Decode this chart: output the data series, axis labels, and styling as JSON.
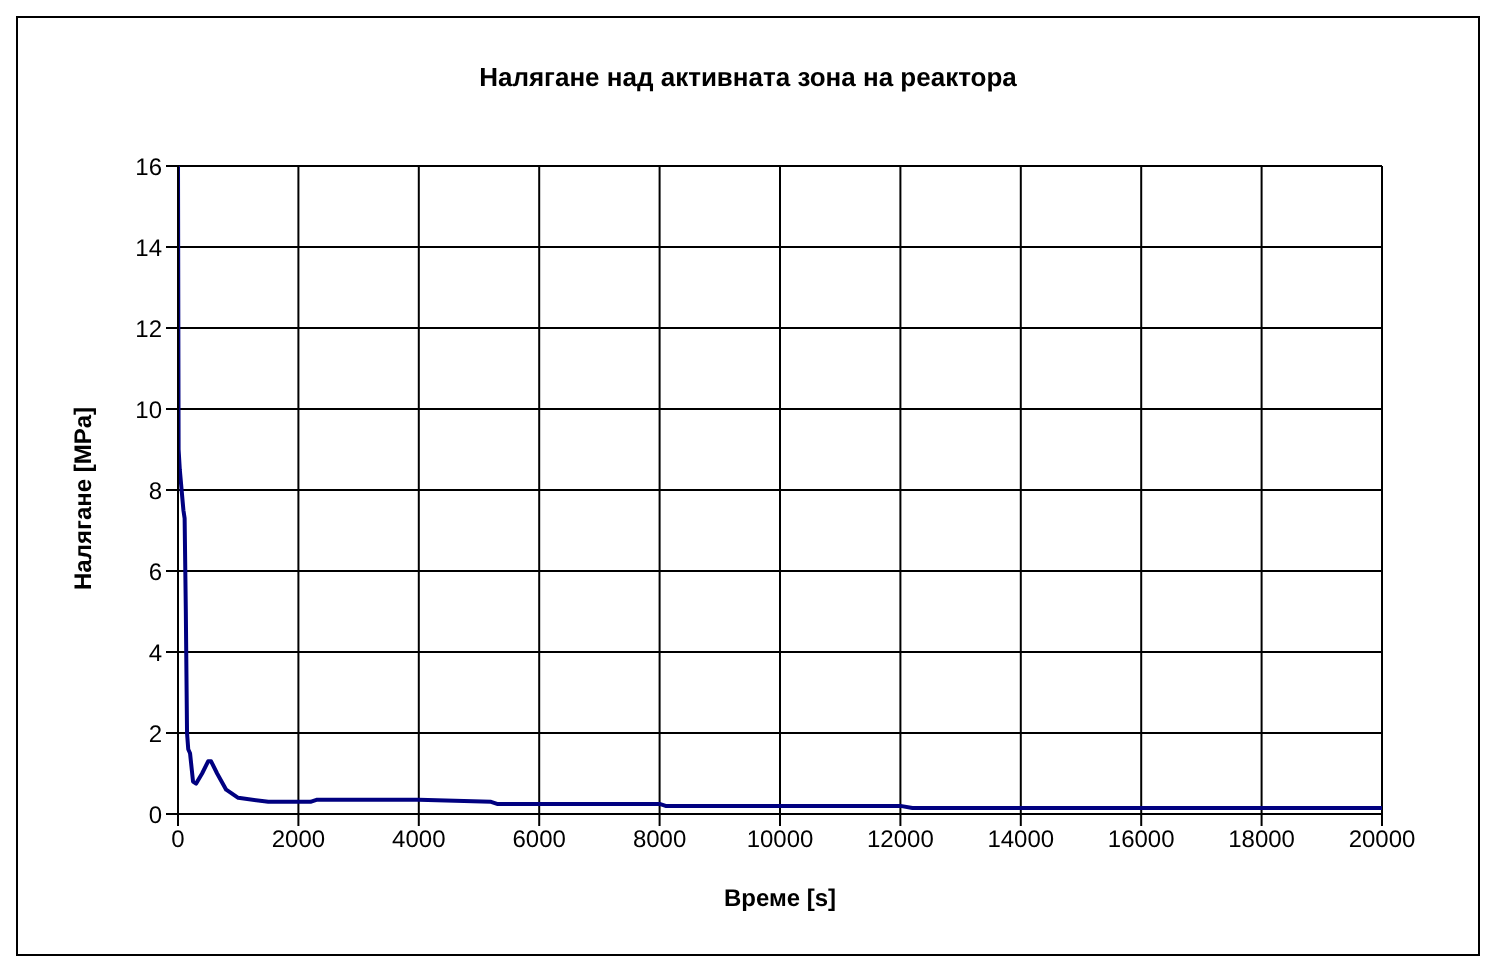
{
  "chart_data": {
    "type": "line",
    "title": "Налягане над активната зона на реактора",
    "xlabel": "Време [s]",
    "ylabel": "Налягане  [MPa]",
    "x": [
      0,
      10,
      30,
      60,
      90,
      110,
      130,
      150,
      170,
      200,
      250,
      300,
      400,
      500,
      550,
      650,
      800,
      1000,
      1500,
      2200,
      2300,
      4000,
      5200,
      5300,
      8000,
      8100,
      12000,
      12200,
      20000
    ],
    "series": [
      {
        "color": "#000080",
        "values": [
          16,
          9,
          8.5,
          8,
          7.5,
          7.3,
          5,
          2,
          1.6,
          1.5,
          0.8,
          0.75,
          1,
          1.3,
          1.3,
          1,
          0.6,
          0.4,
          0.3,
          0.3,
          0.35,
          0.35,
          0.3,
          0.25,
          0.25,
          0.2,
          0.2,
          0.15,
          0.15
        ]
      }
    ],
    "xlim": [
      0,
      20000
    ],
    "xticks": [
      0,
      2000,
      4000,
      6000,
      8000,
      10000,
      12000,
      14000,
      16000,
      18000,
      20000
    ],
    "ylim": [
      0,
      16
    ],
    "yticks": [
      0,
      2,
      4,
      6,
      8,
      10,
      12,
      14,
      16
    ],
    "grid": true,
    "marker": "none",
    "line_style": "solid"
  }
}
